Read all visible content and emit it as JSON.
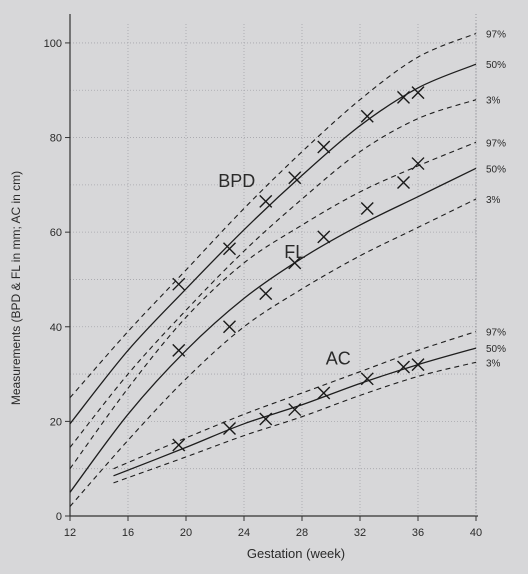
{
  "chart_data": {
    "type": "line",
    "title": "",
    "xlabel": "Gestation (week)",
    "ylabel": "Measurements (BPD & FL in mm; AC in cm)",
    "xlim": [
      12,
      40
    ],
    "ylim": [
      0,
      104
    ],
    "x_ticks": [
      12,
      16,
      20,
      24,
      28,
      32,
      36,
      40
    ],
    "y_ticks": [
      0,
      20,
      40,
      60,
      80,
      100
    ],
    "grid": true,
    "legend": "none",
    "series": [
      {
        "name": "BPD",
        "label_at": [
          23.5,
          69.5
        ],
        "curves": [
          {
            "name": "97%",
            "style": "dashed",
            "x": [
              12,
              16,
              20,
              24,
              28,
              32,
              36,
              40
            ],
            "y": [
              25,
              39,
              52,
              65,
              77,
              88,
              97,
              102
            ]
          },
          {
            "name": "50%",
            "style": "solid",
            "x": [
              12,
              16,
              20,
              24,
              28,
              32,
              36,
              40
            ],
            "y": [
              19.5,
              35,
              48,
              60.5,
              72,
              82.5,
              90.5,
              95.5
            ]
          },
          {
            "name": "3%",
            "style": "dashed",
            "x": [
              12,
              16,
              20,
              24,
              28,
              32,
              36,
              40
            ],
            "y": [
              14.5,
              30,
              43.5,
              56,
              67,
              77,
              84,
              88
            ]
          }
        ],
        "measurements": {
          "x": [
            19.5,
            23,
            25.5,
            27.5,
            29.5,
            32.5,
            35,
            36
          ],
          "y": [
            49,
            56.5,
            66.5,
            71.5,
            78,
            84.5,
            88.5,
            89.5
          ]
        }
      },
      {
        "name": "FL",
        "label_at": [
          27.5,
          54.5
        ],
        "curves": [
          {
            "name": "97%",
            "style": "dashed",
            "x": [
              12,
              16,
              20,
              24,
              28,
              32,
              36,
              40
            ],
            "y": [
              10,
              27,
              42,
              53.5,
              61.5,
              68.5,
              74,
              79
            ]
          },
          {
            "name": "50%",
            "style": "solid",
            "x": [
              12,
              16,
              20,
              24,
              28,
              32,
              36,
              40
            ],
            "y": [
              5,
              21.5,
              35,
              46,
              54.5,
              61.5,
              67.5,
              73.5
            ]
          },
          {
            "name": "3%",
            "style": "dashed",
            "x": [
              12,
              16,
              20,
              24,
              28,
              32,
              36,
              40
            ],
            "y": [
              2,
              16,
              29,
              40,
              48,
              55,
              61,
              67
            ]
          }
        ],
        "measurements": {
          "x": [
            19.5,
            23,
            25.5,
            27.5,
            29.5,
            32.5,
            35,
            36
          ],
          "y": [
            35,
            40,
            47,
            53.5,
            59,
            65,
            70.5,
            74.5
          ]
        }
      },
      {
        "name": "AC",
        "label_at": [
          30.5,
          32
        ],
        "curves": [
          {
            "name": "97%",
            "style": "dashed",
            "x": [
              15,
              20,
              24,
              28,
              32,
              36,
              40
            ],
            "y": [
              10,
              16.5,
              21.5,
              26,
              30.5,
              35,
              39
            ]
          },
          {
            "name": "50%",
            "style": "solid",
            "x": [
              15,
              20,
              24,
              28,
              32,
              36,
              40
            ],
            "y": [
              8.5,
              14.5,
              19.5,
              23.5,
              28,
              32,
              35.5
            ]
          },
          {
            "name": "3%",
            "style": "dashed",
            "x": [
              15,
              20,
              24,
              28,
              32,
              36,
              40
            ],
            "y": [
              7,
              12.5,
              17,
              21,
              25.5,
              29.5,
              32.5
            ]
          }
        ],
        "measurements": {
          "x": [
            19.5,
            23,
            25.5,
            27.5,
            29.5,
            32.5,
            35,
            36
          ],
          "y": [
            15,
            18.5,
            20.5,
            22.5,
            26,
            29,
            31.5,
            32
          ]
        }
      }
    ]
  }
}
